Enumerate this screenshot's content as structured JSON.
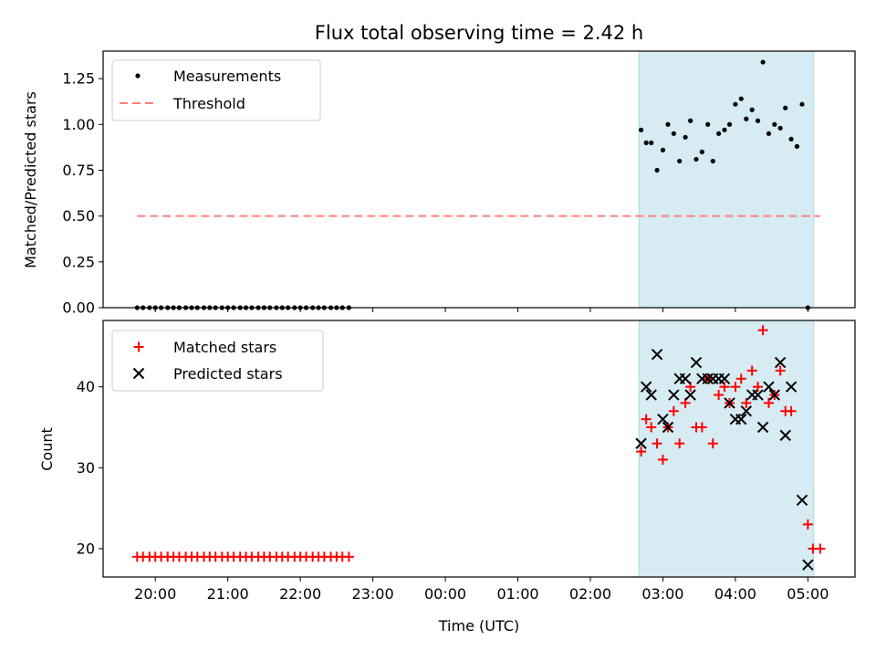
{
  "chart_data": {
    "title": "Flux total observing time = 2.42 h",
    "xlabel": "Time (UTC)",
    "x_unit": "hours",
    "x_ticks": [
      {
        "v": 20,
        "label": "20:00"
      },
      {
        "v": 21,
        "label": "21:00"
      },
      {
        "v": 22,
        "label": "22:00"
      },
      {
        "v": 23,
        "label": "23:00"
      },
      {
        "v": 24,
        "label": "00:00"
      },
      {
        "v": 25,
        "label": "01:00"
      },
      {
        "v": 26,
        "label": "02:00"
      },
      {
        "v": 27,
        "label": "03:00"
      },
      {
        "v": 28,
        "label": "04:00"
      },
      {
        "v": 29,
        "label": "05:00"
      }
    ],
    "xlim": [
      19.28,
      29.65
    ],
    "shaded_span": {
      "x0": 26.67,
      "x1": 29.08,
      "color": "#add8e6"
    },
    "top": {
      "type": "scatter",
      "ylabel": "Matched/Predicted stars",
      "ylim": [
        0,
        1.4
      ],
      "y_ticks": [
        {
          "v": 0,
          "label": "0.00"
        },
        {
          "v": 0.25,
          "label": "0.25"
        },
        {
          "v": 0.5,
          "label": "0.50"
        },
        {
          "v": 0.75,
          "label": "0.75"
        },
        {
          "v": 1.0,
          "label": "1.00"
        },
        {
          "v": 1.25,
          "label": "1.25"
        }
      ],
      "legend": {
        "placement": "top-left",
        "measurements": "Measurements",
        "threshold": "Threshold"
      },
      "threshold": {
        "value": 0.5,
        "x0": 19.75,
        "x1": 29.17,
        "color": "#ff7f7f"
      },
      "measurements_zero_x": [
        19.75,
        19.83,
        19.92,
        20.0,
        20.08,
        20.17,
        20.25,
        20.33,
        20.42,
        20.5,
        20.58,
        20.67,
        20.75,
        20.83,
        20.92,
        21.0,
        21.08,
        21.17,
        21.25,
        21.33,
        21.42,
        21.5,
        21.58,
        21.67,
        21.75,
        21.83,
        21.92,
        22.0,
        22.08,
        22.17,
        22.25,
        22.33,
        22.42,
        22.5,
        22.58,
        22.67
      ],
      "measurements_active": [
        {
          "x": 26.7,
          "y": 0.97
        },
        {
          "x": 26.77,
          "y": 0.9
        },
        {
          "x": 26.84,
          "y": 0.9
        },
        {
          "x": 26.92,
          "y": 0.75
        },
        {
          "x": 27.0,
          "y": 0.86
        },
        {
          "x": 27.07,
          "y": 1.0
        },
        {
          "x": 27.15,
          "y": 0.95
        },
        {
          "x": 27.23,
          "y": 0.8
        },
        {
          "x": 27.31,
          "y": 0.93
        },
        {
          "x": 27.38,
          "y": 1.02
        },
        {
          "x": 27.46,
          "y": 0.81
        },
        {
          "x": 27.54,
          "y": 0.85
        },
        {
          "x": 27.62,
          "y": 1.0
        },
        {
          "x": 27.69,
          "y": 0.8
        },
        {
          "x": 27.77,
          "y": 0.95
        },
        {
          "x": 27.85,
          "y": 0.97
        },
        {
          "x": 27.92,
          "y": 1.0
        },
        {
          "x": 28.0,
          "y": 1.11
        },
        {
          "x": 28.08,
          "y": 1.14
        },
        {
          "x": 28.15,
          "y": 1.03
        },
        {
          "x": 28.23,
          "y": 1.08
        },
        {
          "x": 28.31,
          "y": 1.02
        },
        {
          "x": 28.38,
          "y": 1.34
        },
        {
          "x": 28.46,
          "y": 0.95
        },
        {
          "x": 28.54,
          "y": 1.0
        },
        {
          "x": 28.62,
          "y": 0.98
        },
        {
          "x": 28.69,
          "y": 1.09
        },
        {
          "x": 28.77,
          "y": 0.92
        },
        {
          "x": 28.85,
          "y": 0.88
        },
        {
          "x": 28.92,
          "y": 1.11
        },
        {
          "x": 29.0,
          "y": 0.0
        }
      ]
    },
    "bottom": {
      "type": "scatter",
      "ylabel": "Count",
      "ylim": [
        16.5,
        48.2
      ],
      "y_ticks": [
        {
          "v": 20,
          "label": "20"
        },
        {
          "v": 30,
          "label": "30"
        },
        {
          "v": 40,
          "label": "40"
        }
      ],
      "legend": {
        "placement": "top-left",
        "matched": "Matched stars",
        "predicted": "Predicted stars"
      },
      "matched_color": "#ff0000",
      "predicted_color": "#000000",
      "matched": [
        {
          "x": 19.75,
          "y": 19
        },
        {
          "x": 19.83,
          "y": 19
        },
        {
          "x": 19.92,
          "y": 19
        },
        {
          "x": 20.0,
          "y": 19
        },
        {
          "x": 20.08,
          "y": 19
        },
        {
          "x": 20.17,
          "y": 19
        },
        {
          "x": 20.25,
          "y": 19
        },
        {
          "x": 20.33,
          "y": 19
        },
        {
          "x": 20.42,
          "y": 19
        },
        {
          "x": 20.5,
          "y": 19
        },
        {
          "x": 20.58,
          "y": 19
        },
        {
          "x": 20.67,
          "y": 19
        },
        {
          "x": 20.75,
          "y": 19
        },
        {
          "x": 20.83,
          "y": 19
        },
        {
          "x": 20.92,
          "y": 19
        },
        {
          "x": 21.0,
          "y": 19
        },
        {
          "x": 21.08,
          "y": 19
        },
        {
          "x": 21.17,
          "y": 19
        },
        {
          "x": 21.25,
          "y": 19
        },
        {
          "x": 21.33,
          "y": 19
        },
        {
          "x": 21.42,
          "y": 19
        },
        {
          "x": 21.5,
          "y": 19
        },
        {
          "x": 21.58,
          "y": 19
        },
        {
          "x": 21.67,
          "y": 19
        },
        {
          "x": 21.75,
          "y": 19
        },
        {
          "x": 21.83,
          "y": 19
        },
        {
          "x": 21.92,
          "y": 19
        },
        {
          "x": 22.0,
          "y": 19
        },
        {
          "x": 22.08,
          "y": 19
        },
        {
          "x": 22.17,
          "y": 19
        },
        {
          "x": 22.25,
          "y": 19
        },
        {
          "x": 22.33,
          "y": 19
        },
        {
          "x": 22.42,
          "y": 19
        },
        {
          "x": 22.5,
          "y": 19
        },
        {
          "x": 22.58,
          "y": 19
        },
        {
          "x": 22.67,
          "y": 19
        },
        {
          "x": 26.7,
          "y": 32
        },
        {
          "x": 26.77,
          "y": 36
        },
        {
          "x": 26.84,
          "y": 35
        },
        {
          "x": 26.92,
          "y": 33
        },
        {
          "x": 27.0,
          "y": 31
        },
        {
          "x": 27.07,
          "y": 35
        },
        {
          "x": 27.15,
          "y": 37
        },
        {
          "x": 27.23,
          "y": 33
        },
        {
          "x": 27.31,
          "y": 38
        },
        {
          "x": 27.38,
          "y": 40
        },
        {
          "x": 27.46,
          "y": 35
        },
        {
          "x": 27.54,
          "y": 35
        },
        {
          "x": 27.62,
          "y": 41
        },
        {
          "x": 27.69,
          "y": 33
        },
        {
          "x": 27.77,
          "y": 39
        },
        {
          "x": 27.85,
          "y": 40
        },
        {
          "x": 27.92,
          "y": 38
        },
        {
          "x": 28.0,
          "y": 40
        },
        {
          "x": 28.08,
          "y": 41
        },
        {
          "x": 28.15,
          "y": 38
        },
        {
          "x": 28.23,
          "y": 42
        },
        {
          "x": 28.31,
          "y": 40
        },
        {
          "x": 28.38,
          "y": 47
        },
        {
          "x": 28.46,
          "y": 38
        },
        {
          "x": 28.54,
          "y": 39
        },
        {
          "x": 28.62,
          "y": 42
        },
        {
          "x": 28.69,
          "y": 37
        },
        {
          "x": 28.77,
          "y": 37
        },
        {
          "x": 29.0,
          "y": 23
        },
        {
          "x": 29.07,
          "y": 20
        },
        {
          "x": 29.17,
          "y": 20
        }
      ],
      "predicted": [
        {
          "x": 26.7,
          "y": 33
        },
        {
          "x": 26.77,
          "y": 40
        },
        {
          "x": 26.84,
          "y": 39
        },
        {
          "x": 26.92,
          "y": 44
        },
        {
          "x": 27.0,
          "y": 36
        },
        {
          "x": 27.07,
          "y": 35
        },
        {
          "x": 27.15,
          "y": 39
        },
        {
          "x": 27.23,
          "y": 41
        },
        {
          "x": 27.31,
          "y": 41
        },
        {
          "x": 27.38,
          "y": 39
        },
        {
          "x": 27.46,
          "y": 43
        },
        {
          "x": 27.54,
          "y": 41
        },
        {
          "x": 27.62,
          "y": 41
        },
        {
          "x": 27.69,
          "y": 41
        },
        {
          "x": 27.77,
          "y": 41
        },
        {
          "x": 27.85,
          "y": 41
        },
        {
          "x": 27.92,
          "y": 38
        },
        {
          "x": 28.0,
          "y": 36
        },
        {
          "x": 28.08,
          "y": 36
        },
        {
          "x": 28.15,
          "y": 37
        },
        {
          "x": 28.23,
          "y": 39
        },
        {
          "x": 28.31,
          "y": 39
        },
        {
          "x": 28.38,
          "y": 35
        },
        {
          "x": 28.46,
          "y": 40
        },
        {
          "x": 28.54,
          "y": 39
        },
        {
          "x": 28.62,
          "y": 43
        },
        {
          "x": 28.69,
          "y": 34
        },
        {
          "x": 28.77,
          "y": 40
        },
        {
          "x": 28.92,
          "y": 26
        },
        {
          "x": 29.0,
          "y": 18
        }
      ]
    }
  }
}
